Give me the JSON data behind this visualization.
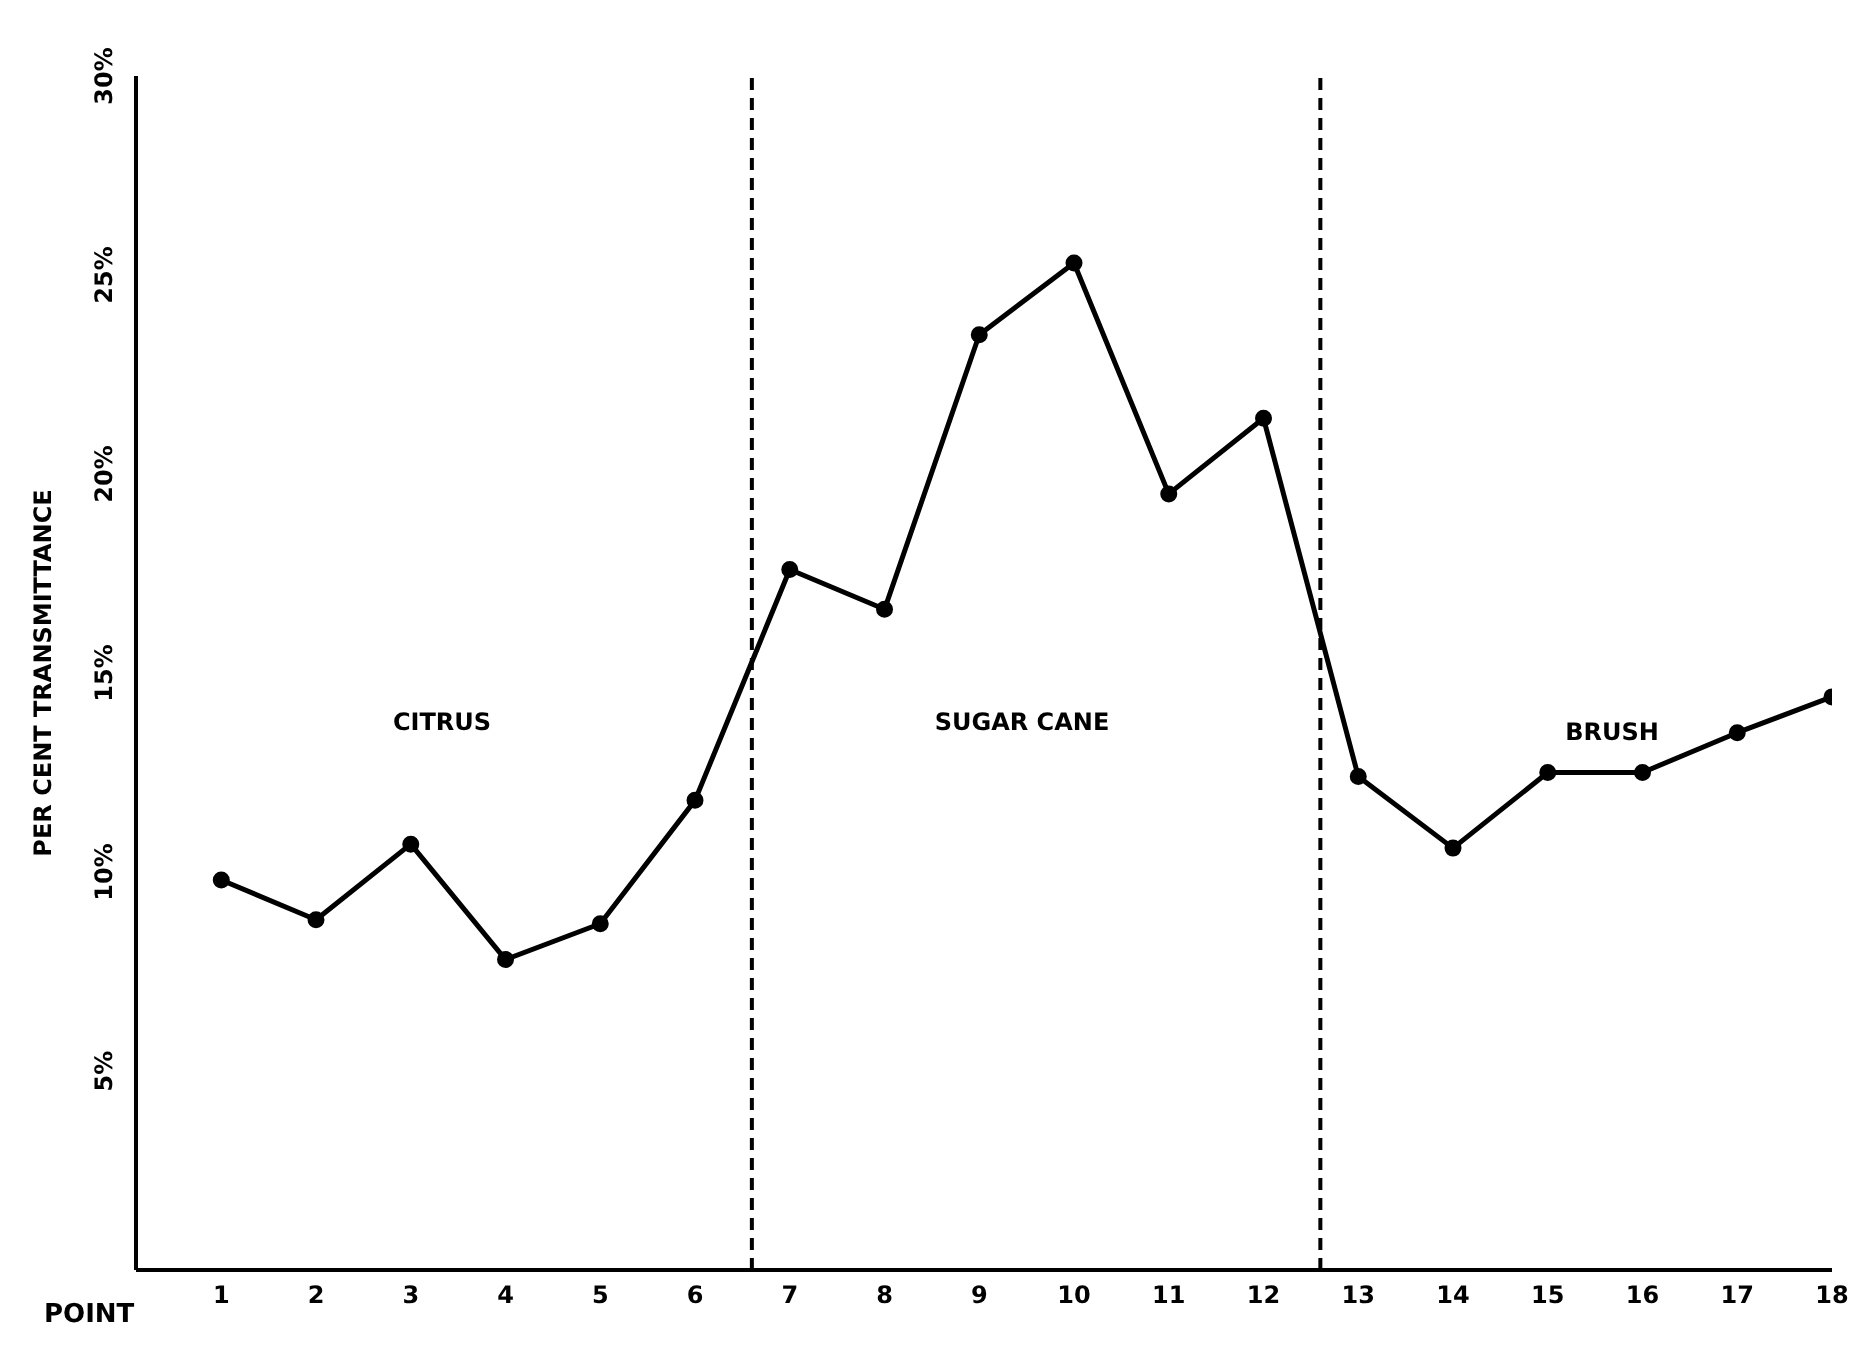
{
  "chart_data": {
    "type": "line",
    "xlabel": "POINT",
    "ylabel": "PER CENT TRANSMITTANCE",
    "x": [
      1,
      2,
      3,
      4,
      5,
      6,
      7,
      8,
      9,
      10,
      11,
      12,
      13,
      14,
      15,
      16,
      17,
      18
    ],
    "xlim": [
      0.1,
      18
    ],
    "xticks": [
      1,
      2,
      3,
      4,
      5,
      6,
      7,
      8,
      9,
      10,
      11,
      12,
      13,
      14,
      15,
      16,
      17,
      18
    ],
    "ylim": [
      0,
      30
    ],
    "yticks": [
      {
        "value": 5,
        "label": "5%"
      },
      {
        "value": 10,
        "label": "10%"
      },
      {
        "value": 15,
        "label": "15%"
      },
      {
        "value": 20,
        "label": "20%"
      },
      {
        "value": 25,
        "label": "25%"
      },
      {
        "value": 30,
        "label": "30%"
      }
    ],
    "series": [
      {
        "color": "#000000",
        "values": [
          9.8,
          8.8,
          10.7,
          7.8,
          8.7,
          11.8,
          17.6,
          16.6,
          23.5,
          25.3,
          19.5,
          21.4,
          12.4,
          10.6,
          12.5,
          12.5,
          13.5,
          14.4
        ]
      }
    ],
    "marker": "circle",
    "line_style": "solid",
    "grid": false,
    "legend": false,
    "ref_lines": [
      {
        "axis": "x",
        "value": 6.6,
        "line_style": "dashed",
        "color": "#000000"
      },
      {
        "axis": "x",
        "value": 12.6,
        "line_style": "dashed",
        "color": "#000000"
      }
    ],
    "annotations": [
      "CITRUS",
      "SUGAR CANE",
      "BRUSH"
    ]
  }
}
